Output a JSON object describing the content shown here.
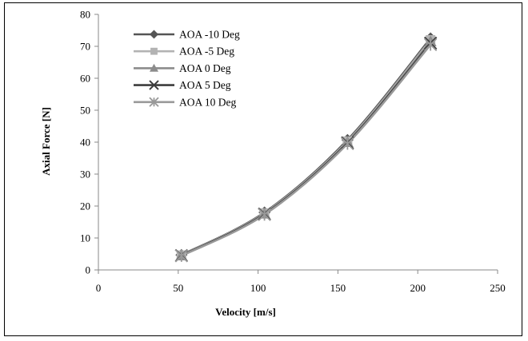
{
  "chart_data": {
    "type": "line",
    "title": "",
    "xlabel": "Velocity [m/s]",
    "ylabel": "Axial Force [N]",
    "xlim": [
      0,
      250
    ],
    "ylim": [
      0,
      80
    ],
    "xticks": [
      0,
      50,
      100,
      150,
      200,
      250
    ],
    "yticks": [
      0,
      10,
      20,
      30,
      40,
      50,
      60,
      70,
      80
    ],
    "grid": false,
    "legend_position": "top-left",
    "series": [
      {
        "name": "AOA -10 Deg",
        "marker": "diamond",
        "color": "#555555",
        "x": [
          52,
          104,
          156,
          208
        ],
        "y": [
          4.7,
          18.0,
          40.7,
          72.5
        ]
      },
      {
        "name": "AOA -5 Deg",
        "marker": "square",
        "color": "#b3b3b3",
        "x": [
          52,
          104,
          156,
          208
        ],
        "y": [
          4.6,
          17.8,
          40.3,
          72.0
        ]
      },
      {
        "name": "AOA 0 Deg",
        "marker": "triangle",
        "color": "#8c8c8c",
        "x": [
          52,
          104,
          156,
          208
        ],
        "y": [
          4.5,
          17.6,
          40.0,
          71.5
        ]
      },
      {
        "name": "AOA 5 Deg",
        "marker": "x",
        "color": "#3d3d3d",
        "x": [
          52,
          104,
          156,
          208
        ],
        "y": [
          4.5,
          17.5,
          39.8,
          71.0
        ]
      },
      {
        "name": "AOA 10 Deg",
        "marker": "star",
        "color": "#999999",
        "x": [
          52,
          104,
          156,
          208
        ],
        "y": [
          4.4,
          17.3,
          39.5,
          70.5
        ]
      }
    ]
  }
}
